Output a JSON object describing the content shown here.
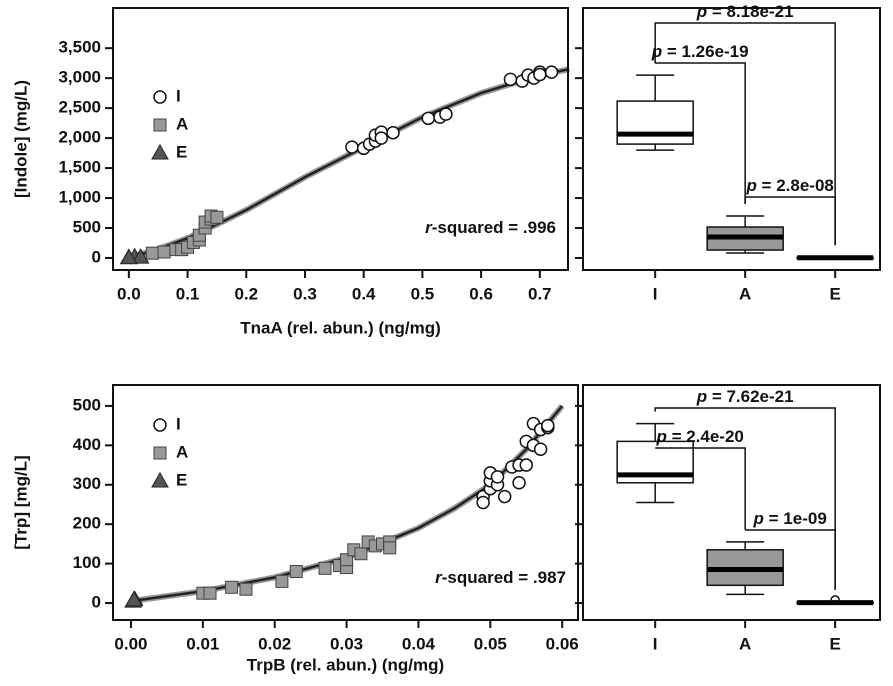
{
  "chart_data": [
    {
      "type": "scatter",
      "x_label": "TnaA (rel. abun.) (ng/mg)",
      "y_label": "[Indole] (mg/L)",
      "xlim": [
        -0.027,
        0.748
      ],
      "ylim": [
        -200,
        4170
      ],
      "xticks": [
        {
          "value": 0,
          "label": "0.0"
        },
        0.1,
        0.2,
        0.3,
        0.4,
        0.5,
        0.6,
        0.7
      ],
      "yticks": [
        0,
        500,
        {
          "value": 1000,
          "label": "1,000"
        },
        {
          "value": 1500,
          "label": "1,500"
        },
        {
          "value": 2000,
          "label": "2,000"
        },
        {
          "value": 2500,
          "label": "2,500"
        },
        {
          "value": 3000,
          "label": "3,000"
        },
        {
          "value": 3500,
          "label": "3,500"
        }
      ],
      "legend": "upper left",
      "annotation_italic": "r",
      "annotation": "-squared = .996",
      "fit": {
        "color": "#222222",
        "x": [
          0,
          0.05,
          0.1,
          0.15,
          0.2,
          0.3,
          0.4,
          0.5,
          0.6,
          0.7,
          0.75
        ],
        "values": [
          0,
          150,
          330,
          560,
          800,
          1350,
          1850,
          2350,
          2750,
          3050,
          3150
        ]
      },
      "series": [
        {
          "name": "I",
          "marker": "circle",
          "color": "#ffffff",
          "x": [
            0.38,
            0.4,
            0.41,
            0.42,
            0.42,
            0.43,
            0.43,
            0.45,
            0.51,
            0.53,
            0.54,
            0.65,
            0.67,
            0.68,
            0.69,
            0.7,
            0.7,
            0.72
          ],
          "values": [
            1850,
            1830,
            1900,
            1950,
            2050,
            2100,
            2000,
            2090,
            2330,
            2350,
            2400,
            2980,
            2950,
            3050,
            3000,
            3100,
            3060,
            3100
          ]
        },
        {
          "name": "A",
          "marker": "square",
          "color": "#999999",
          "x": [
            0.04,
            0.06,
            0.08,
            0.09,
            0.1,
            0.11,
            0.12,
            0.12,
            0.13,
            0.13,
            0.14,
            0.14,
            0.15
          ],
          "values": [
            80,
            100,
            140,
            140,
            180,
            260,
            300,
            380,
            500,
            600,
            650,
            700,
            680
          ]
        },
        {
          "name": "E",
          "marker": "triangle",
          "color": "#555555",
          "x": [
            0.0,
            0.01,
            0.02,
            0.0
          ],
          "values": [
            10,
            20,
            15,
            5
          ]
        }
      ]
    },
    {
      "type": "box",
      "categories": [
        "I",
        "A",
        "E"
      ],
      "colors": [
        "#ffffff",
        "#999999",
        "#333333"
      ],
      "ylim": [
        -200,
        4170
      ],
      "yticks": [
        0,
        500,
        1000,
        1500,
        2000,
        2500,
        3000,
        3500
      ],
      "min": [
        1800,
        83,
        0
      ],
      "q1": [
        1900,
        133,
        2
      ],
      "median": [
        2067,
        350,
        5
      ],
      "q3": [
        2617,
        517,
        8
      ],
      "max": [
        3050,
        700,
        12
      ],
      "outliers": [
        null,
        null,
        null
      ],
      "comparisons": [
        {
          "italic": "p",
          "text": " = 8.18e-21"
        },
        {
          "italic": "p",
          "text": " = 1.26e-19"
        },
        {
          "italic": "p",
          "text": " = 2.8e-08"
        }
      ]
    },
    {
      "type": "scatter",
      "x_label": "TrpB (rel. abun.) (ng/mg)",
      "y_label": "[Trp] [mg/L]",
      "xlim": [
        -0.0025,
        0.0622
      ],
      "ylim": [
        -43,
        553
      ],
      "xticks": [
        {
          "value": 0,
          "label": "0.00"
        },
        0.01,
        0.02,
        0.03,
        0.04,
        0.05,
        0.06
      ],
      "yticks": [
        0,
        100,
        200,
        300,
        400,
        500
      ],
      "legend": "upper left",
      "annotation_italic": "r",
      "annotation": "-squared = .987",
      "fit": {
        "color": "#222222",
        "x": [
          0,
          0.01,
          0.02,
          0.03,
          0.04,
          0.045,
          0.05,
          0.055,
          0.06
        ],
        "values": [
          5,
          30,
          65,
          115,
          190,
          240,
          300,
          390,
          500
        ]
      },
      "series": [
        {
          "name": "I",
          "marker": "circle",
          "color": "#ffffff",
          "x": [
            0.049,
            0.049,
            0.05,
            0.05,
            0.05,
            0.051,
            0.051,
            0.052,
            0.053,
            0.054,
            0.054,
            0.055,
            0.055,
            0.056,
            0.056,
            0.057,
            0.057,
            0.058,
            0.058
          ],
          "values": [
            270,
            255,
            290,
            310,
            330,
            300,
            320,
            270,
            345,
            305,
            350,
            410,
            350,
            400,
            455,
            390,
            440,
            445,
            450
          ]
        },
        {
          "name": "A",
          "marker": "square",
          "color": "#999999",
          "x": [
            0.01,
            0.011,
            0.014,
            0.016,
            0.021,
            0.023,
            0.027,
            0.029,
            0.03,
            0.03,
            0.031,
            0.032,
            0.033,
            0.034,
            0.035,
            0.036,
            0.036
          ],
          "values": [
            25,
            25,
            40,
            35,
            55,
            80,
            88,
            95,
            90,
            110,
            135,
            125,
            155,
            145,
            150,
            155,
            140
          ]
        },
        {
          "name": "E",
          "marker": "triangle",
          "color": "#555555",
          "x": [
            0.0003,
            0.0005,
            0.0004
          ],
          "values": [
            5,
            10,
            8
          ]
        }
      ]
    },
    {
      "type": "box",
      "categories": [
        "I",
        "A",
        "E"
      ],
      "colors": [
        "#ffffff",
        "#999999",
        "#333333"
      ],
      "ylim": [
        -43,
        553
      ],
      "yticks": [
        0,
        100,
        200,
        300,
        400,
        500
      ],
      "min": [
        255,
        22,
        0
      ],
      "q1": [
        305,
        45,
        0
      ],
      "median": [
        325,
        85,
        1
      ],
      "q3": [
        410,
        135,
        2
      ],
      "max": [
        455,
        155,
        3
      ],
      "outliers": [
        null,
        null,
        8
      ],
      "comparisons": [
        {
          "italic": "p",
          "text": " = 7.62e-21"
        },
        {
          "italic": "p",
          "text": " = 2.4e-20"
        },
        {
          "italic": "p",
          "text": " = 1e-09"
        }
      ]
    }
  ]
}
